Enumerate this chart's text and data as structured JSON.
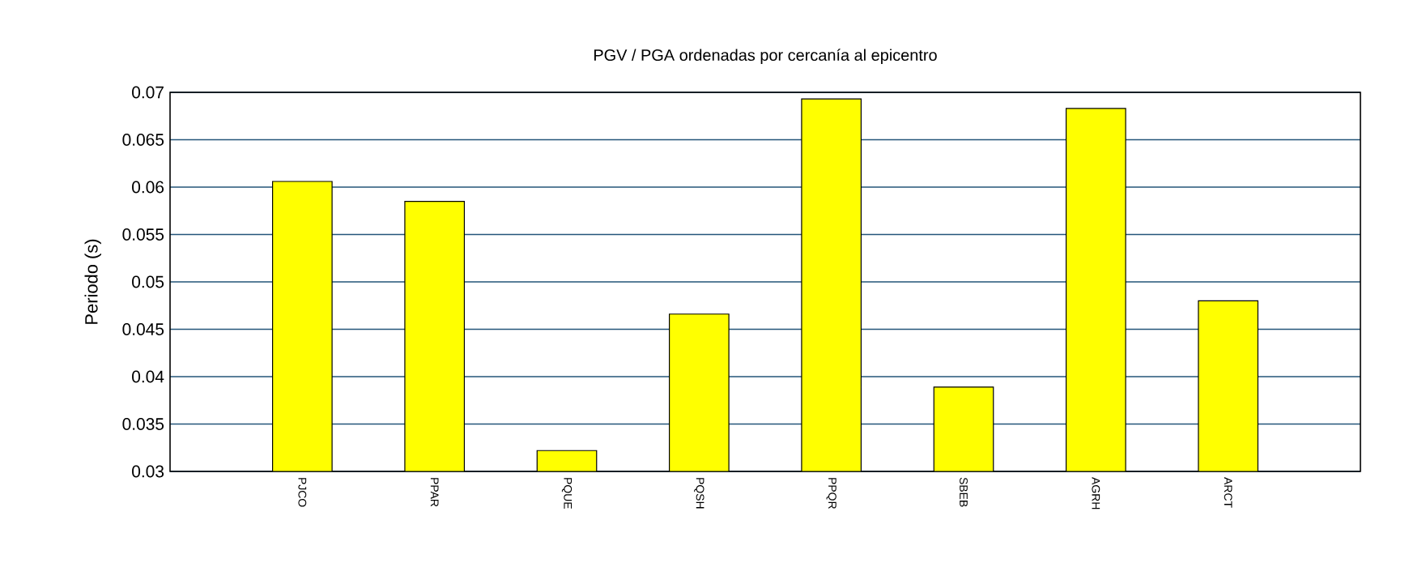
{
  "chart_data": {
    "type": "bar",
    "title": "PGV / PGA ordenadas por cercanía al epicentro",
    "ylabel": "Periodo (s)",
    "categories": [
      "PJCO",
      "PPAR",
      "PQUE",
      "PQSH",
      "PPQR",
      "SBEB",
      "AGRH",
      "ARCT"
    ],
    "values": [
      0.0606,
      0.0585,
      0.0322,
      0.0466,
      0.0693,
      0.0389,
      0.0683,
      0.048
    ],
    "color": "#ffff00",
    "ylim": [
      0.03,
      0.07
    ],
    "yticks": [
      0.03,
      0.035,
      0.04,
      0.045,
      0.05,
      0.055,
      0.06,
      0.065,
      0.07
    ],
    "grid": "y"
  }
}
